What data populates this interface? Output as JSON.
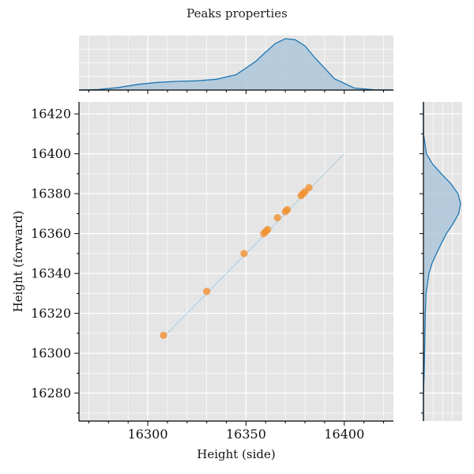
{
  "figure": {
    "title": "Peaks properties"
  },
  "chart_data": [
    {
      "type": "scatter",
      "title": "",
      "xlabel": "Height (side)",
      "ylabel": "Height (forward)",
      "xlim": [
        16265,
        16425
      ],
      "ylim": [
        16266,
        16426
      ],
      "xticks": [
        16300,
        16350,
        16400
      ],
      "yticks": [
        16280,
        16300,
        16320,
        16340,
        16360,
        16380,
        16400,
        16420
      ],
      "grid": true,
      "reference_line": {
        "x": [
          16308,
          16400
        ],
        "y": [
          16308,
          16400
        ]
      },
      "points": [
        {
          "x": 16308,
          "y": 16309
        },
        {
          "x": 16330,
          "y": 16331
        },
        {
          "x": 16349,
          "y": 16350
        },
        {
          "x": 16359,
          "y": 16360
        },
        {
          "x": 16360,
          "y": 16361
        },
        {
          "x": 16361,
          "y": 16362
        },
        {
          "x": 16366,
          "y": 16368
        },
        {
          "x": 16370,
          "y": 16371
        },
        {
          "x": 16371,
          "y": 16372
        },
        {
          "x": 16378,
          "y": 16379
        },
        {
          "x": 16379,
          "y": 16380
        },
        {
          "x": 16380,
          "y": 16381
        },
        {
          "x": 16382,
          "y": 16383
        }
      ],
      "colors": {
        "points": "#f28e2b",
        "reference_line": "#7fb8e0",
        "background": "#e5e5e5",
        "grid": "#ffffff"
      }
    },
    {
      "type": "area",
      "title": "",
      "orientation": "horizontal",
      "description_axis": "x",
      "x": [
        16265,
        16275,
        16285,
        16295,
        16305,
        16315,
        16325,
        16335,
        16345,
        16355,
        16360,
        16365,
        16370,
        16375,
        16380,
        16385,
        16395,
        16405,
        16415,
        16425
      ],
      "values": [
        0.0,
        0.01,
        0.05,
        0.11,
        0.15,
        0.17,
        0.18,
        0.21,
        0.3,
        0.56,
        0.74,
        0.91,
        1.0,
        0.98,
        0.86,
        0.63,
        0.22,
        0.04,
        0.005,
        0.0
      ],
      "colors": {
        "line": "#1f77b4",
        "fill": "#a9c4d9"
      }
    },
    {
      "type": "area",
      "title": "",
      "orientation": "vertical",
      "description_axis": "y",
      "x": [
        16266,
        16280,
        16290,
        16300,
        16310,
        16320,
        16330,
        16340,
        16345,
        16350,
        16355,
        16360,
        16365,
        16370,
        16375,
        16380,
        16385,
        16390,
        16395,
        16400,
        16410,
        16426
      ],
      "values": [
        0.0,
        0.0,
        0.02,
        0.03,
        0.04,
        0.05,
        0.07,
        0.15,
        0.23,
        0.35,
        0.48,
        0.62,
        0.8,
        0.95,
        1.0,
        0.93,
        0.74,
        0.48,
        0.24,
        0.08,
        0.0,
        0.0
      ],
      "colors": {
        "line": "#1f77b4",
        "fill": "#a9c4d9"
      }
    }
  ]
}
